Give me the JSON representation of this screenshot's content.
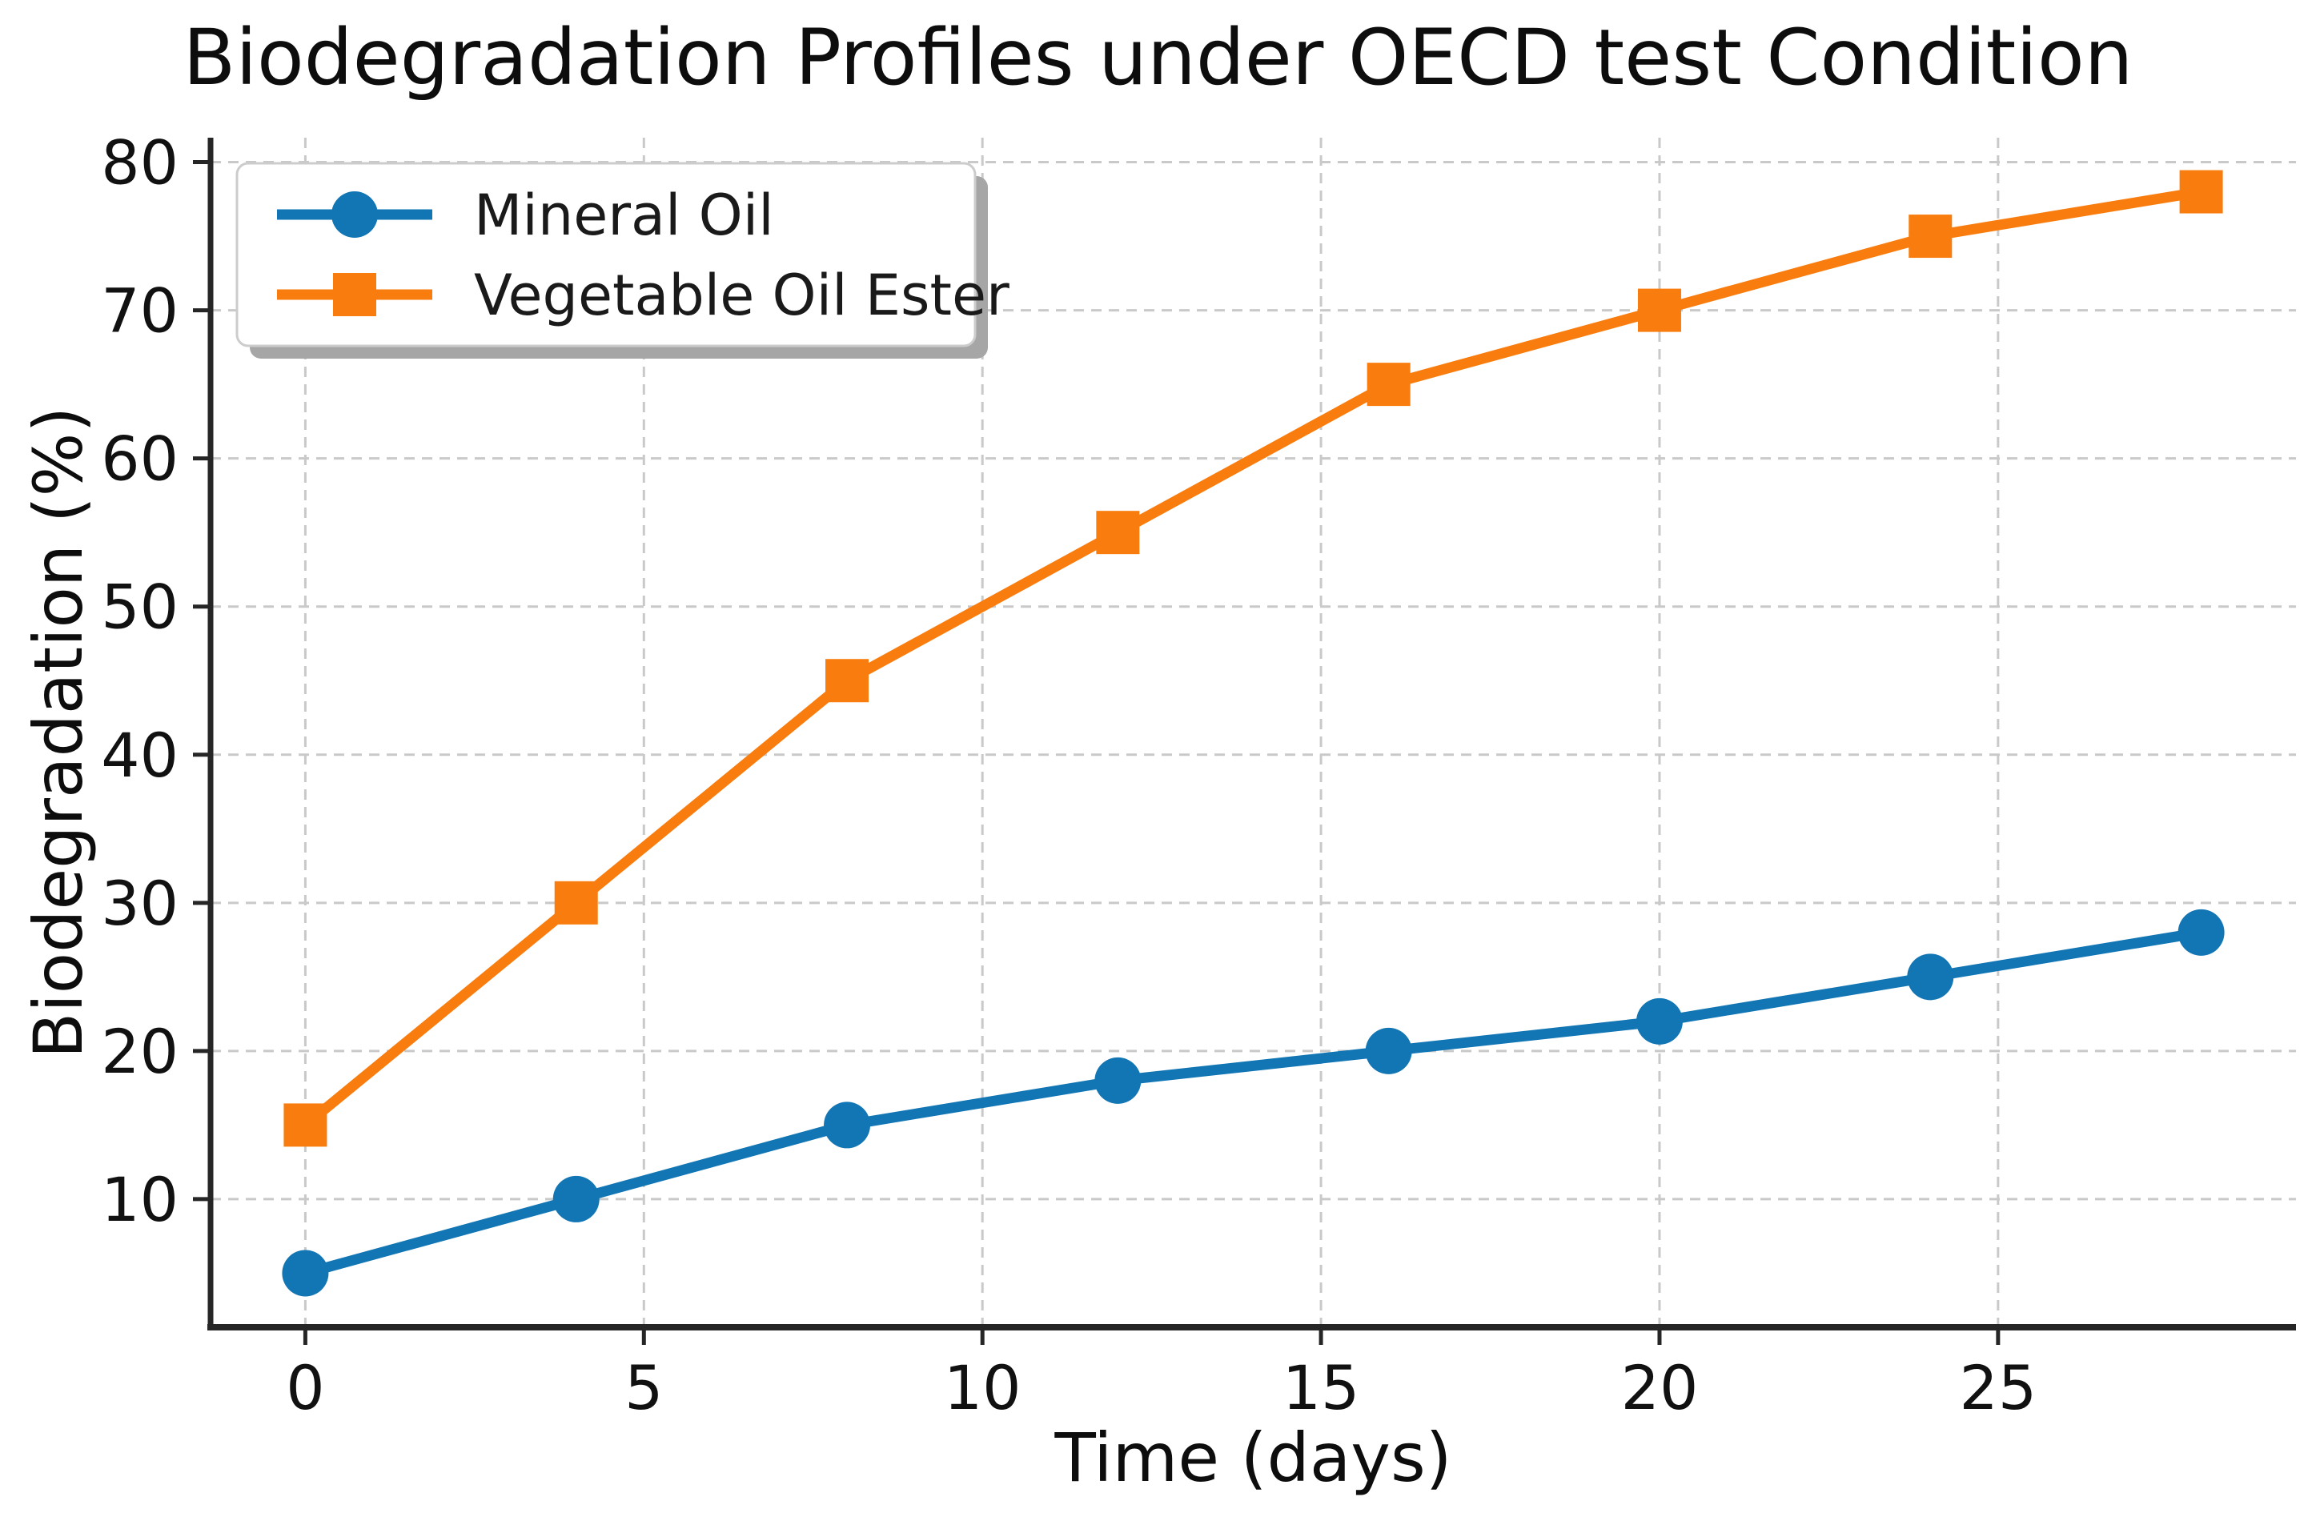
{
  "chart_data": {
    "type": "line",
    "title": "Biodegradation Profiles under OECD test Condition",
    "xlabel": "Time (days)",
    "ylabel": "Biodegradation (%)",
    "x": [
      0,
      4,
      8,
      12,
      16,
      20,
      24,
      28
    ],
    "series": [
      {
        "name": "Mineral Oil",
        "marker": "circle",
        "color": "#1276b4",
        "values": [
          5,
          10,
          15,
          18,
          20,
          22,
          25,
          28
        ]
      },
      {
        "name": "Vegetable Oil Ester",
        "marker": "square",
        "color": "#f97d0e",
        "values": [
          15,
          30,
          45,
          55,
          65,
          70,
          75,
          78
        ]
      }
    ],
    "xticks": [
      0,
      5,
      10,
      15,
      20,
      25
    ],
    "yticks": [
      10,
      20,
      30,
      40,
      50,
      60,
      70,
      80
    ],
    "xlim": [
      -1.4,
      29.4
    ],
    "ylim": [
      1.35,
      81.65
    ],
    "grid": true,
    "grid_color": "#c9c9c9",
    "grid_style": "dashed",
    "axis_color": "#262626",
    "tick_label_color": "#111111",
    "legend_position": "upper-left",
    "legend_border_color": "#cccccc",
    "legend_shadow_color": "#a6a6a6"
  }
}
